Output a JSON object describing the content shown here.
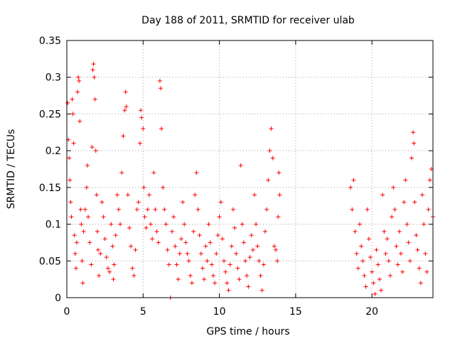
{
  "chart_data": {
    "type": "scatter",
    "title": "Day 188 of 2011, SRMTID for receiver ulab",
    "xlabel": "GPS time / hours",
    "ylabel": "SRMTID / TECUs",
    "xlim": [
      0,
      24
    ],
    "ylim": [
      0,
      0.35
    ],
    "x_ticks": [
      0,
      5,
      10,
      15,
      20
    ],
    "x_tick_labels": [
      "0",
      "5",
      "10",
      "15",
      "20"
    ],
    "y_ticks": [
      0,
      0.05,
      0.1,
      0.15,
      0.2,
      0.25,
      0.3,
      0.35
    ],
    "y_tick_labels": [
      "0",
      "0.05",
      "0.1",
      "0.15",
      "0.2",
      "0.25",
      "0.3",
      "0.35"
    ],
    "grid": true,
    "marker": "+",
    "marker_color": "#ff0000",
    "series": [
      {
        "name": "SRMTID",
        "points": [
          [
            0.05,
            0.265
          ],
          [
            0.1,
            0.215
          ],
          [
            0.15,
            0.19
          ],
          [
            0.2,
            0.16
          ],
          [
            0.25,
            0.13
          ],
          [
            0.3,
            0.11
          ],
          [
            0.35,
            0.27
          ],
          [
            0.4,
            0.25
          ],
          [
            0.45,
            0.21
          ],
          [
            0.5,
            0.085
          ],
          [
            0.55,
            0.06
          ],
          [
            0.6,
            0.04
          ],
          [
            0.65,
            0.075
          ],
          [
            0.7,
            0.28
          ],
          [
            0.75,
            0.3
          ],
          [
            0.8,
            0.295
          ],
          [
            0.85,
            0.24
          ],
          [
            0.9,
            0.12
          ],
          [
            0.95,
            0.1
          ],
          [
            1.0,
            0.05
          ],
          [
            1.05,
            0.02
          ],
          [
            1.1,
            0.09
          ],
          [
            1.2,
            0.12
          ],
          [
            1.3,
            0.15
          ],
          [
            1.35,
            0.18
          ],
          [
            1.4,
            0.11
          ],
          [
            1.5,
            0.075
          ],
          [
            1.6,
            0.045
          ],
          [
            1.65,
            0.205
          ],
          [
            1.7,
            0.31
          ],
          [
            1.75,
            0.318
          ],
          [
            1.8,
            0.3
          ],
          [
            1.85,
            0.27
          ],
          [
            1.9,
            0.2
          ],
          [
            1.95,
            0.14
          ],
          [
            2.0,
            0.09
          ],
          [
            2.05,
            0.065
          ],
          [
            2.1,
            0.03
          ],
          [
            2.2,
            0.06
          ],
          [
            2.3,
            0.13
          ],
          [
            2.4,
            0.11
          ],
          [
            2.5,
            0.08
          ],
          [
            2.6,
            0.055
          ],
          [
            2.7,
            0.04
          ],
          [
            2.8,
            0.035
          ],
          [
            2.9,
            0.1
          ],
          [
            3.0,
            0.07
          ],
          [
            3.05,
            0.025
          ],
          [
            3.1,
            0.045
          ],
          [
            3.2,
            0.085
          ],
          [
            3.3,
            0.14
          ],
          [
            3.4,
            0.12
          ],
          [
            3.5,
            0.1
          ],
          [
            3.6,
            0.17
          ],
          [
            3.7,
            0.22
          ],
          [
            3.8,
            0.255
          ],
          [
            3.85,
            0.28
          ],
          [
            3.9,
            0.26
          ],
          [
            4.0,
            0.14
          ],
          [
            4.1,
            0.095
          ],
          [
            4.2,
            0.07
          ],
          [
            4.3,
            0.04
          ],
          [
            4.4,
            0.03
          ],
          [
            4.5,
            0.065
          ],
          [
            4.6,
            0.12
          ],
          [
            4.7,
            0.13
          ],
          [
            4.8,
            0.21
          ],
          [
            4.85,
            0.255
          ],
          [
            4.9,
            0.245
          ],
          [
            5.0,
            0.23
          ],
          [
            5.05,
            0.15
          ],
          [
            5.1,
            0.11
          ],
          [
            5.2,
            0.095
          ],
          [
            5.3,
            0.12
          ],
          [
            5.4,
            0.14
          ],
          [
            5.5,
            0.1
          ],
          [
            5.6,
            0.08
          ],
          [
            5.7,
            0.17
          ],
          [
            5.8,
            0.12
          ],
          [
            5.9,
            0.09
          ],
          [
            6.0,
            0.075
          ],
          [
            6.1,
            0.295
          ],
          [
            6.15,
            0.285
          ],
          [
            6.2,
            0.23
          ],
          [
            6.3,
            0.15
          ],
          [
            6.4,
            0.12
          ],
          [
            6.5,
            0.1
          ],
          [
            6.6,
            0.065
          ],
          [
            6.7,
            0.045
          ],
          [
            6.8,
            0.0
          ],
          [
            6.9,
            0.09
          ],
          [
            7.0,
            0.11
          ],
          [
            7.1,
            0.07
          ],
          [
            7.2,
            0.045
          ],
          [
            7.3,
            0.025
          ],
          [
            7.4,
            0.06
          ],
          [
            7.5,
            0.08
          ],
          [
            7.6,
            0.13
          ],
          [
            7.7,
            0.1
          ],
          [
            7.8,
            0.075
          ],
          [
            7.9,
            0.06
          ],
          [
            8.0,
            0.05
          ],
          [
            8.1,
            0.03
          ],
          [
            8.2,
            0.02
          ],
          [
            8.3,
            0.09
          ],
          [
            8.4,
            0.14
          ],
          [
            8.5,
            0.17
          ],
          [
            8.6,
            0.12
          ],
          [
            8.7,
            0.085
          ],
          [
            8.8,
            0.06
          ],
          [
            8.9,
            0.04
          ],
          [
            9.0,
            0.025
          ],
          [
            9.1,
            0.07
          ],
          [
            9.2,
            0.05
          ],
          [
            9.3,
            0.1
          ],
          [
            9.4,
            0.075
          ],
          [
            9.5,
            0.045
          ],
          [
            9.6,
            0.03
          ],
          [
            9.7,
            0.02
          ],
          [
            9.8,
            0.06
          ],
          [
            9.9,
            0.085
          ],
          [
            10.0,
            0.11
          ],
          [
            10.1,
            0.13
          ],
          [
            10.2,
            0.08
          ],
          [
            10.3,
            0.05
          ],
          [
            10.4,
            0.035
          ],
          [
            10.5,
            0.02
          ],
          [
            10.6,
            0.01
          ],
          [
            10.7,
            0.045
          ],
          [
            10.8,
            0.07
          ],
          [
            10.9,
            0.12
          ],
          [
            11.0,
            0.095
          ],
          [
            11.1,
            0.06
          ],
          [
            11.2,
            0.04
          ],
          [
            11.3,
            0.025
          ],
          [
            11.4,
            0.18
          ],
          [
            11.5,
            0.1
          ],
          [
            11.6,
            0.075
          ],
          [
            11.7,
            0.05
          ],
          [
            11.8,
            0.03
          ],
          [
            11.9,
            0.015
          ],
          [
            12.0,
            0.055
          ],
          [
            12.1,
            0.085
          ],
          [
            12.2,
            0.065
          ],
          [
            12.3,
            0.14
          ],
          [
            12.4,
            0.1
          ],
          [
            12.5,
            0.07
          ],
          [
            12.6,
            0.05
          ],
          [
            12.7,
            0.03
          ],
          [
            12.8,
            0.01
          ],
          [
            12.9,
            0.045
          ],
          [
            13.0,
            0.09
          ],
          [
            13.1,
            0.12
          ],
          [
            13.2,
            0.16
          ],
          [
            13.3,
            0.2
          ],
          [
            13.4,
            0.23
          ],
          [
            13.5,
            0.19
          ],
          [
            13.6,
            0.07
          ],
          [
            13.7,
            0.065
          ],
          [
            13.8,
            0.05
          ],
          [
            13.85,
            0.11
          ],
          [
            13.9,
            0.17
          ],
          [
            13.95,
            0.14
          ],
          [
            18.6,
            0.15
          ],
          [
            18.7,
            0.12
          ],
          [
            18.8,
            0.16
          ],
          [
            18.9,
            0.09
          ],
          [
            19.0,
            0.06
          ],
          [
            19.1,
            0.04
          ],
          [
            19.2,
            0.1
          ],
          [
            19.3,
            0.07
          ],
          [
            19.4,
            0.05
          ],
          [
            19.5,
            0.03
          ],
          [
            19.6,
            0.015
          ],
          [
            19.7,
            0.12
          ],
          [
            19.8,
            0.08
          ],
          [
            19.9,
            0.055
          ],
          [
            20.0,
            0.035
          ],
          [
            20.1,
            0.02
          ],
          [
            20.2,
            0.005
          ],
          [
            20.3,
            0.065
          ],
          [
            20.4,
            0.045
          ],
          [
            20.5,
            0.025
          ],
          [
            20.6,
            0.01
          ],
          [
            20.7,
            0.14
          ],
          [
            20.8,
            0.09
          ],
          [
            20.9,
            0.06
          ],
          [
            21.0,
            0.08
          ],
          [
            21.1,
            0.05
          ],
          [
            21.2,
            0.03
          ],
          [
            21.3,
            0.11
          ],
          [
            21.4,
            0.15
          ],
          [
            21.5,
            0.12
          ],
          [
            21.6,
            0.07
          ],
          [
            21.7,
            0.045
          ],
          [
            21.8,
            0.09
          ],
          [
            21.9,
            0.06
          ],
          [
            22.0,
            0.035
          ],
          [
            22.1,
            0.13
          ],
          [
            22.2,
            0.16
          ],
          [
            22.3,
            0.1
          ],
          [
            22.4,
            0.075
          ],
          [
            22.5,
            0.05
          ],
          [
            22.6,
            0.19
          ],
          [
            22.7,
            0.225
          ],
          [
            22.75,
            0.21
          ],
          [
            22.8,
            0.13
          ],
          [
            22.9,
            0.085
          ],
          [
            23.0,
            0.065
          ],
          [
            23.1,
            0.04
          ],
          [
            23.2,
            0.02
          ],
          [
            23.3,
            0.14
          ],
          [
            23.4,
            0.1
          ],
          [
            23.5,
            0.06
          ],
          [
            23.6,
            0.035
          ],
          [
            23.7,
            0.12
          ],
          [
            23.8,
            0.16
          ],
          [
            23.9,
            0.175
          ],
          [
            24.0,
            0.11
          ]
        ]
      }
    ]
  }
}
